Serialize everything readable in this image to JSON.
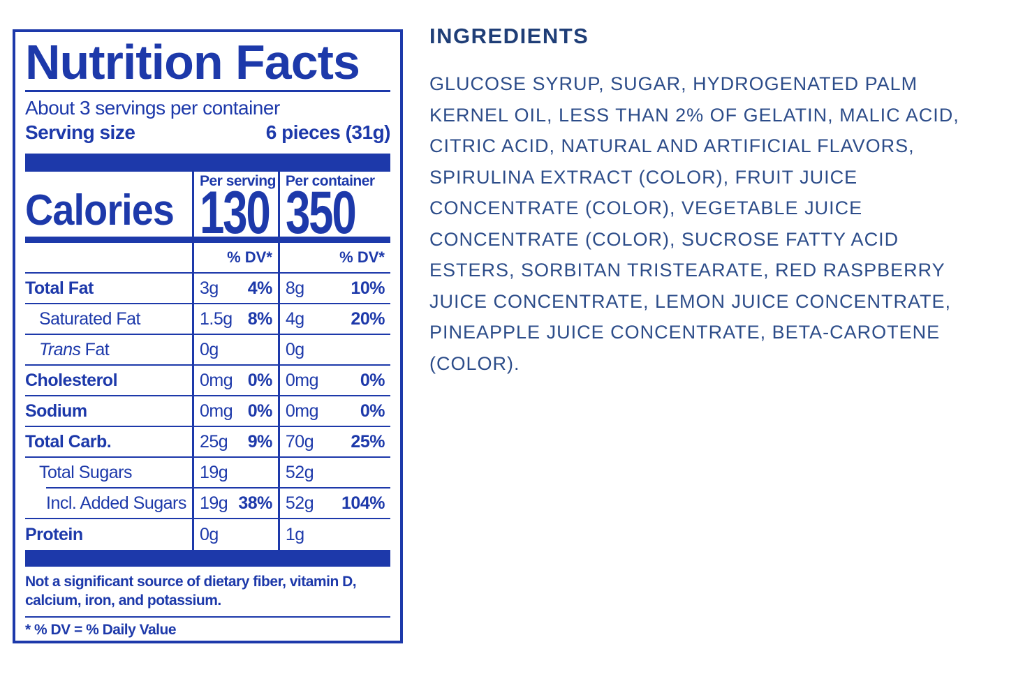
{
  "colors": {
    "label_blue": "#1d39aa",
    "ingredients_heading_navy": "#1f3e77",
    "ingredients_body_navy": "#2c4c89"
  },
  "label": {
    "title": "Nutrition Facts",
    "servings_per_container": "About 3 servings per container",
    "serving_size_label": "Serving size",
    "serving_size_value": "6 pieces (31g)",
    "calories": {
      "label": "Calories",
      "columns": [
        {
          "header": "Per serving",
          "value": "130"
        },
        {
          "header": "Per container",
          "value": "350"
        }
      ]
    },
    "dv_header": "% DV*",
    "rows": [
      {
        "label": "Total Fat",
        "bold": true,
        "indent": 0,
        "ps_amount": "3g",
        "ps_dv": "4%",
        "pc_amount": "8g",
        "pc_dv": "10%"
      },
      {
        "label": "Saturated Fat",
        "bold": false,
        "indent": 1,
        "ps_amount": "1.5g",
        "ps_dv": "8%",
        "pc_amount": "4g",
        "pc_dv": "20%"
      },
      {
        "label_italic": "Trans",
        "label": "Fat",
        "bold": false,
        "indent": 1,
        "ps_amount": "0g",
        "ps_dv": "",
        "pc_amount": "0g",
        "pc_dv": ""
      },
      {
        "label": "Cholesterol",
        "bold": true,
        "indent": 0,
        "ps_amount": "0mg",
        "ps_dv": "0%",
        "pc_amount": "0mg",
        "pc_dv": "0%"
      },
      {
        "label": "Sodium",
        "bold": true,
        "indent": 0,
        "ps_amount": "0mg",
        "ps_dv": "0%",
        "pc_amount": "0mg",
        "pc_dv": "0%"
      },
      {
        "label": "Total Carb.",
        "bold": true,
        "indent": 0,
        "ps_amount": "25g",
        "ps_dv": "9%",
        "pc_amount": "70g",
        "pc_dv": "25%"
      },
      {
        "label": "Total Sugars",
        "bold": false,
        "indent": 1,
        "sep_indent_below": true,
        "ps_amount": "19g",
        "ps_dv": "",
        "pc_amount": "52g",
        "pc_dv": ""
      },
      {
        "label": "Incl. Added Sugars",
        "bold": false,
        "indent": 2,
        "ps_amount": "19g",
        "ps_dv": "38%",
        "pc_amount": "52g",
        "pc_dv": "104%"
      },
      {
        "label": "Protein",
        "bold": true,
        "indent": 0,
        "ps_amount": "0g",
        "ps_dv": "",
        "pc_amount": "1g",
        "pc_dv": ""
      }
    ],
    "footnote": "Not a significant source of dietary fiber, vitamin D, calcium, iron, and potassium.",
    "dv_note": "* % DV = % Daily Value"
  },
  "ingredients": {
    "heading": "INGREDIENTS",
    "text": "GLUCOSE SYRUP, SUGAR, HYDROGENATED PALM KERNEL OIL, LESS THAN 2% OF GELATIN, MALIC ACID, CITRIC ACID, NATURAL AND ARTIFICIAL FLAVORS, SPIRULINA EXTRACT (COLOR), FRUIT JUICE CONCENTRATE (COLOR), VEGETABLE JUICE CONCENTRATE (COLOR), SUCROSE FATTY ACID ESTERS, SORBITAN TRISTEARATE, RED RASPBERRY JUICE CONCENTRATE, LEMON JUICE CONCENTRATE, PINEAPPLE JUICE CONCENTRATE, BETA-CAROTENE (COLOR)."
  }
}
